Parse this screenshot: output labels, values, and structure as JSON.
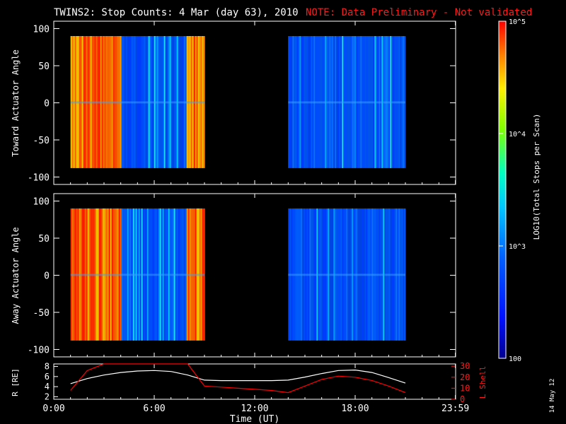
{
  "title": {
    "main": "TWINS2: Stop Counts:  4 Mar (day  63), 2010",
    "note": "NOTE: Data Preliminary - Not validated"
  },
  "colors": {
    "note": "#ff1a1a",
    "background": "#000000",
    "radius_line": "#ffffff",
    "lshell_line": "#ff0000"
  },
  "chart_data": [
    {
      "type": "heatmap",
      "name": "toward",
      "ylabel": "Toward Actuator Angle",
      "ylim": [
        -110,
        110
      ],
      "yticks": [
        100,
        50,
        0,
        -50,
        -100
      ],
      "xlim": [
        0,
        24
      ],
      "data_segments": [
        {
          "t_start": 1.0,
          "t_end": 9.0,
          "angle_min": -88,
          "angle_max": 90,
          "level": "high (orange-red)"
        },
        {
          "t_start": 14.0,
          "t_end": 21.0,
          "angle_min": -88,
          "angle_max": 90,
          "level": "low (blue)"
        }
      ]
    },
    {
      "type": "heatmap",
      "name": "away",
      "ylabel": "Away Actuator Angle",
      "ylim": [
        -110,
        110
      ],
      "yticks": [
        100,
        50,
        0,
        -50,
        -100
      ],
      "xlim": [
        0,
        24
      ],
      "data_segments": [
        {
          "t_start": 1.0,
          "t_end": 9.0,
          "angle_min": -88,
          "angle_max": 90,
          "level": "high (orange-red)"
        },
        {
          "t_start": 14.0,
          "t_end": 21.0,
          "angle_min": -88,
          "angle_max": 90,
          "level": "low (blue)"
        }
      ]
    },
    {
      "type": "line",
      "name": "orbit",
      "ylabel_left": "R [RE]",
      "ylabel_right": "L Shell",
      "yticks_left": [
        8,
        6,
        4,
        2
      ],
      "yticks_right": [
        30,
        20,
        10,
        0
      ],
      "ylim_left": [
        1.5,
        8.5
      ],
      "ylim_right": [
        0,
        32
      ],
      "x": [
        1.0,
        2.0,
        3.0,
        4.0,
        5.0,
        6.0,
        7.0,
        8.0,
        9.0,
        10.0,
        11.0,
        12.0,
        13.0,
        14.0,
        15.0,
        16.0,
        17.0,
        18.0,
        19.0,
        20.0,
        21.0
      ],
      "series": [
        {
          "name": "R [RE]",
          "values": [
            4.6,
            5.6,
            6.3,
            6.8,
            7.1,
            7.2,
            7.0,
            6.3,
            5.3,
            5.2,
            5.2,
            5.2,
            5.2,
            5.3,
            5.9,
            6.6,
            7.2,
            7.3,
            6.8,
            5.8,
            4.7
          ]
        },
        {
          "name": "L Shell",
          "values": [
            8,
            26,
            34,
            34,
            34,
            34,
            34,
            34,
            12,
            11,
            10,
            9,
            8,
            6,
            12,
            18,
            21,
            20,
            17,
            12,
            6
          ]
        }
      ]
    }
  ],
  "xaxis": {
    "label": "Time (UT)",
    "ticks": [
      {
        "t": 0,
        "label": "0:00"
      },
      {
        "t": 6,
        "label": "6:00"
      },
      {
        "t": 12,
        "label": "12:00"
      },
      {
        "t": 18,
        "label": "18:00"
      },
      {
        "t": 23.983,
        "label": "23:59"
      }
    ]
  },
  "colorbar": {
    "label": "LOG10(Total Stops per Scan)",
    "ticks": [
      {
        "value": 100000,
        "label": "10^5"
      },
      {
        "value": 10000,
        "label": "10^4"
      },
      {
        "value": 1000,
        "label": "10^3"
      },
      {
        "value": 100,
        "label": "100"
      }
    ],
    "range": [
      100,
      100000
    ]
  },
  "date_stamp": "14 May 12"
}
